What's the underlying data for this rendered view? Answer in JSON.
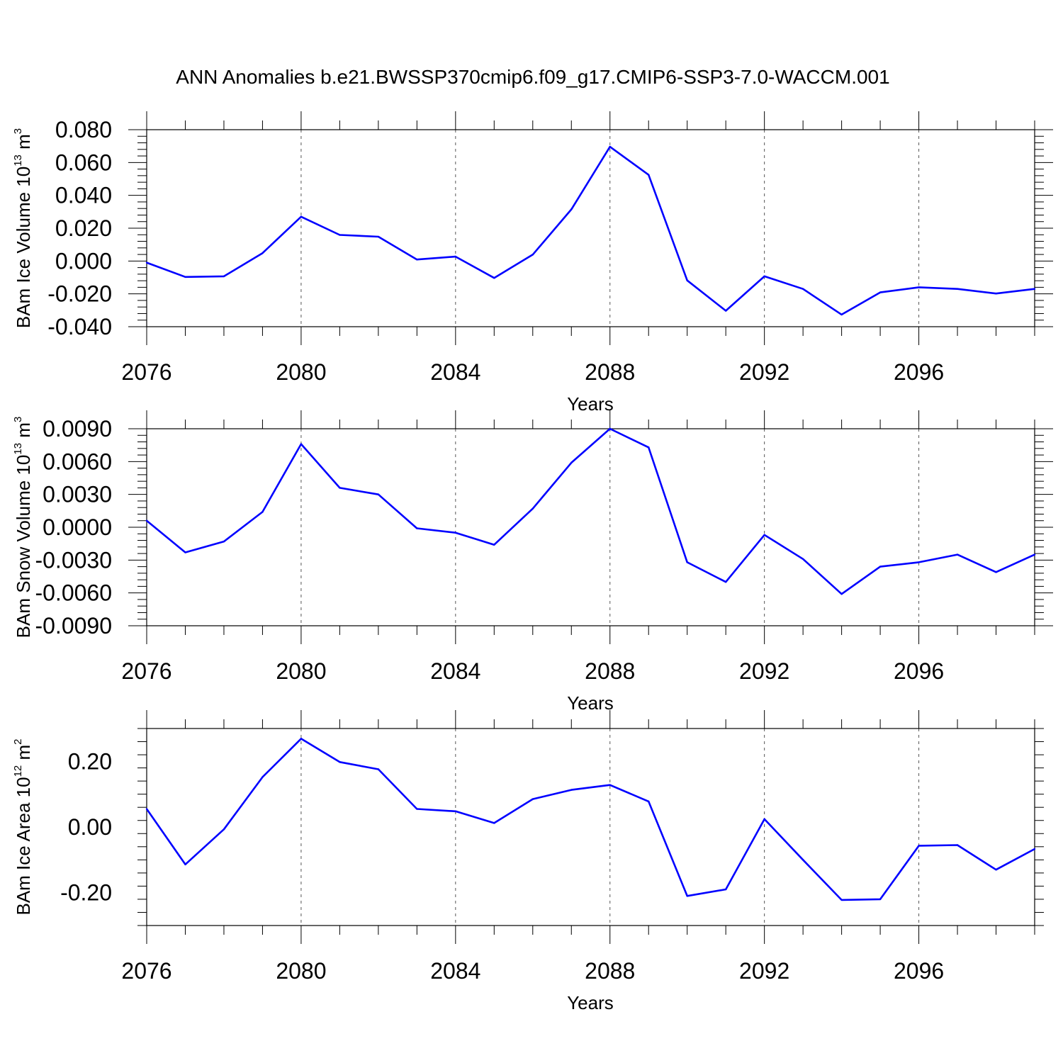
{
  "title": "ANN Anomalies b.e21.BWSSP370cmip6.f09_g17.CMIP6-SSP3-7.0-WACCM.001",
  "chart_data": [
    {
      "type": "line",
      "title": "ANN Anomalies b.e21.BWSSP370cmip6.f09_g17.CMIP6-SSP3-7.0-WACCM.001",
      "xlabel": "Years",
      "ylabel": {
        "base": "BAm Ice Volume 10",
        "exp": "13",
        "unit": " m",
        "unit_exp": "3"
      },
      "xlim": [
        2076,
        2099
      ],
      "ylim": [
        -0.04,
        0.08
      ],
      "xticks": [
        "2076",
        "2080",
        "2084",
        "2088",
        "2092",
        "2096"
      ],
      "xtick_values": [
        2076,
        2080,
        2084,
        2088,
        2092,
        2096
      ],
      "yticks": [
        "-0.040",
        "-0.020",
        "0.000",
        "0.020",
        "0.040",
        "0.060",
        "0.080"
      ],
      "ytick_values": [
        -0.04,
        -0.02,
        0.0,
        0.02,
        0.04,
        0.06,
        0.08
      ],
      "grid": "vertical dashed at major x ticks",
      "line_color": "#0000ff",
      "x": [
        2076,
        2077,
        2078,
        2079,
        2080,
        2081,
        2082,
        2083,
        2084,
        2085,
        2086,
        2087,
        2088,
        2089,
        2090,
        2091,
        2092,
        2093,
        2094,
        2095,
        2096,
        2097,
        2098,
        2099
      ],
      "y": [
        -0.001,
        -0.0097,
        -0.0093,
        0.0048,
        0.027,
        0.0159,
        0.0148,
        0.0009,
        0.0027,
        -0.0103,
        0.0039,
        0.0315,
        0.0696,
        0.0525,
        -0.0118,
        -0.0303,
        -0.0093,
        -0.017,
        -0.0326,
        -0.0191,
        -0.016,
        -0.017,
        -0.0198,
        -0.017
      ]
    },
    {
      "type": "line",
      "xlabel": "Years",
      "ylabel": {
        "base": "BAm Snow Volume 10",
        "exp": "13",
        "unit": " m",
        "unit_exp": "3"
      },
      "xlim": [
        2076,
        2099
      ],
      "ylim": [
        -0.009,
        0.009
      ],
      "xticks": [
        "2076",
        "2080",
        "2084",
        "2088",
        "2092",
        "2096"
      ],
      "xtick_values": [
        2076,
        2080,
        2084,
        2088,
        2092,
        2096
      ],
      "yticks": [
        "-0.0090",
        "-0.0060",
        "-0.0030",
        "0.0000",
        "0.0030",
        "0.0060",
        "0.0090"
      ],
      "ytick_values": [
        -0.009,
        -0.006,
        -0.003,
        0.0,
        0.003,
        0.006,
        0.009
      ],
      "grid": "vertical dashed at major x ticks",
      "line_color": "#0000ff",
      "x": [
        2076,
        2077,
        2078,
        2079,
        2080,
        2081,
        2082,
        2083,
        2084,
        2085,
        2086,
        2087,
        2088,
        2089,
        2090,
        2091,
        2092,
        2093,
        2094,
        2095,
        2096,
        2097,
        2098,
        2099
      ],
      "y": [
        0.0006,
        -0.0023,
        -0.0013,
        0.0014,
        0.0076,
        0.0036,
        0.003,
        -0.0001,
        -0.0005,
        -0.0016,
        0.0017,
        0.0059,
        0.009,
        0.0073,
        -0.0032,
        -0.005,
        -0.0007,
        -0.0029,
        -0.0061,
        -0.0036,
        -0.0032,
        -0.0025,
        -0.0041,
        -0.0025
      ]
    },
    {
      "type": "line",
      "xlabel": "Years",
      "ylabel": {
        "base": "BAm Ice Area 10",
        "exp": "12",
        "unit": " m",
        "unit_exp": "2"
      },
      "xlim": [
        2076,
        2099
      ],
      "ylim": [
        -0.3,
        0.3
      ],
      "xticks": [
        "2076",
        "2080",
        "2084",
        "2088",
        "2092",
        "2096"
      ],
      "xtick_values": [
        2076,
        2080,
        2084,
        2088,
        2092,
        2096
      ],
      "yticks": [
        "-0.20",
        "0.00",
        "0.20"
      ],
      "ytick_values": [
        -0.2,
        0.0,
        0.2
      ],
      "grid": "vertical dashed at major x ticks",
      "line_color": "#0000ff",
      "x": [
        2076,
        2077,
        2078,
        2079,
        2080,
        2081,
        2082,
        2083,
        2084,
        2085,
        2086,
        2087,
        2088,
        2089,
        2090,
        2091,
        2092,
        2093,
        2094,
        2095,
        2096,
        2097,
        2098,
        2099
      ],
      "y": [
        0.055,
        -0.114,
        -0.007,
        0.152,
        0.269,
        0.198,
        0.176,
        0.055,
        0.048,
        0.012,
        0.085,
        0.113,
        0.128,
        0.078,
        -0.21,
        -0.19,
        0.024,
        -0.1,
        -0.222,
        -0.22,
        -0.057,
        -0.055,
        -0.13,
        -0.067
      ]
    }
  ]
}
